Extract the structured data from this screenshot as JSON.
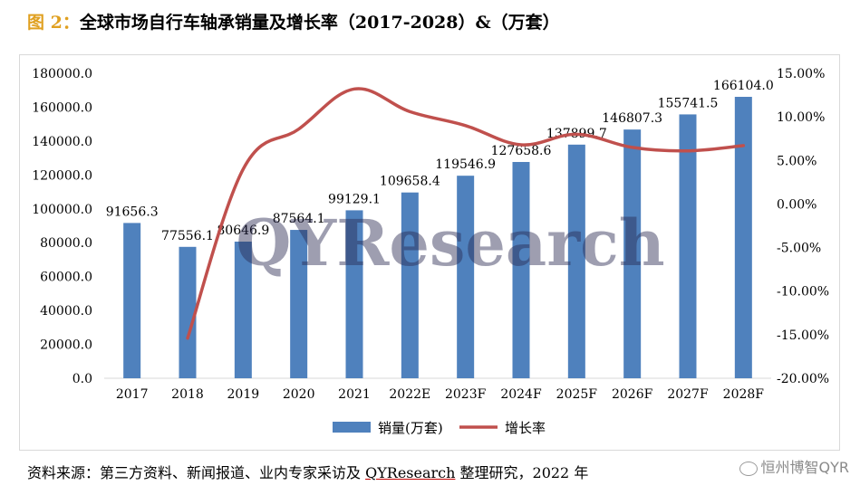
{
  "header": {
    "figure_label": "图 2：",
    "title": "全球市场自行车轴承销量及增长率（2017-2028）&（万套）"
  },
  "footer": {
    "source_prefix": "资料来源：第三方资料、新闻报道、业内专家采访及 ",
    "source_brand": "QYResearch",
    "source_suffix": " 整理研究，2022 年"
  },
  "watermark_tag": "恒州博智QYR",
  "chart_data": {
    "type": "bar",
    "categories": [
      "2017",
      "2018",
      "2019",
      "2020",
      "2021",
      "2022E",
      "2023F",
      "2024F",
      "2025F",
      "2026F",
      "2027F",
      "2028F"
    ],
    "series": [
      {
        "name": "销量(万套)",
        "type": "bar",
        "axis": "left",
        "color": "#4f81bd",
        "values": [
          91656.3,
          77556.1,
          80646.9,
          87564.1,
          99129.1,
          109658.4,
          119546.9,
          127658.6,
          137899.7,
          146807.3,
          155741.5,
          166104.0
        ],
        "labels": [
          "91656.3",
          "77556.1",
          "80646.9",
          "87564.1",
          "99129.1",
          "109658.4",
          "119546.9",
          "127658.6",
          "137899.7",
          "146807.3",
          "155741.5",
          "166104.0"
        ]
      },
      {
        "name": "增长率",
        "type": "line",
        "axis": "right",
        "color": "#c0504d",
        "values": [
          null,
          -15.4,
          4.0,
          8.6,
          13.2,
          10.6,
          9.0,
          6.8,
          8.0,
          6.5,
          6.1,
          6.7
        ]
      }
    ],
    "y_left": {
      "min": 0,
      "max": 180000,
      "step": 20000,
      "tick_labels": [
        "0.0",
        "20000.0",
        "40000.0",
        "60000.0",
        "80000.0",
        "100000.0",
        "120000.0",
        "140000.0",
        "160000.0",
        "180000.0"
      ]
    },
    "y_right": {
      "min": -20,
      "max": 15,
      "step": 5,
      "tick_labels": [
        "-20.00%",
        "-15.00%",
        "-10.00%",
        "-5.00%",
        "0.00%",
        "5.00%",
        "10.00%",
        "15.00%"
      ]
    },
    "legend_position": "bottom",
    "grid": false,
    "watermark": "QYResearch"
  }
}
